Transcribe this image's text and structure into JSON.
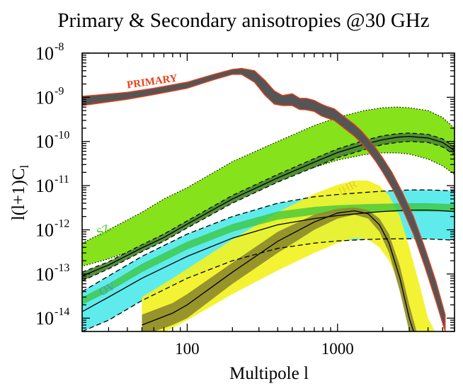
{
  "chart_data": {
    "type": "area",
    "title": "Primary & Secondary anisotropies @30 GHz",
    "xlabel": "Multipole l",
    "ylabel": "l(l+1)C",
    "ylabel_sub": "l",
    "xscale": "log",
    "yscale": "log",
    "xlim": [
      20,
      6000
    ],
    "ylim": [
      5e-15,
      1e-08
    ],
    "x_ticks": [
      {
        "value": 100,
        "label": "100"
      },
      {
        "value": 1000,
        "label": "1000"
      }
    ],
    "y_ticks": [
      {
        "value": 1e-14,
        "base": "10",
        "exp": "-14"
      },
      {
        "value": 1e-13,
        "base": "10",
        "exp": "-13"
      },
      {
        "value": 1e-12,
        "base": "10",
        "exp": "-12"
      },
      {
        "value": 1e-11,
        "base": "10",
        "exp": "-11"
      },
      {
        "value": 1e-10,
        "base": "10",
        "exp": "-10"
      },
      {
        "value": 1e-09,
        "base": "10",
        "exp": "-9"
      },
      {
        "value": 1e-08,
        "base": "10",
        "exp": "-8"
      }
    ],
    "grid": false,
    "colors": {
      "primary_fill": "#555555",
      "primary_edge": "#e8401c",
      "sz_fill": "#86e21a",
      "sz_inner": "#4c8a33",
      "ov_fill": "#4ee9ea",
      "ov_inner": "#3f9a7a",
      "ihr_fill": "#f2f223",
      "ihr_inner": "#8c8a2a",
      "overlap": "#39c43a",
      "lines": "#000000"
    },
    "annotations": [
      {
        "text": "PRIMARY",
        "x": 40,
        "y": 1.6e-09,
        "color": "#e8401c",
        "rotate": -8
      },
      {
        "text": "SZ",
        "x": 26,
        "y": 7e-13,
        "color": "#45c41a",
        "rotate": -28
      },
      {
        "text": "OV",
        "x": 27,
        "y": 3.2e-14,
        "color": "#4a8fe0",
        "rotate": -28
      },
      {
        "text": "IHR",
        "x": 1050,
        "y": 6e-12,
        "color": "#e0d21a",
        "rotate": -28
      }
    ],
    "series": [
      {
        "label": "PRIMARY",
        "x": [
          20,
          40,
          60,
          100,
          150,
          200,
          230,
          280,
          330,
          380,
          430,
          500,
          560,
          620,
          700,
          780,
          850,
          950,
          1050,
          1150,
          1300,
          1450,
          1600,
          1800,
          2000,
          2300,
          2700,
          3200,
          3800,
          4500,
          5200
        ],
        "lower": [
          6.5e-10,
          9e-10,
          1.15e-09,
          1.6e-09,
          2.5e-09,
          3.3e-09,
          3.3e-09,
          2.2e-09,
          1.1e-09,
          7e-10,
          6.5e-10,
          6.5e-10,
          5.3e-10,
          5.2e-10,
          4.8e-10,
          3.8e-10,
          3.4e-10,
          3e-10,
          2.3e-10,
          1.8e-10,
          1.3e-10,
          9e-11,
          6e-11,
          3.5e-11,
          2e-11,
          9e-12,
          3e-12,
          8e-13,
          1.5e-13,
          2.5e-14,
          5e-15
        ],
        "upper": [
          1.05e-09,
          1.3e-09,
          1.6e-09,
          2.2e-09,
          3.3e-09,
          4.3e-09,
          4.5e-09,
          4e-09,
          2.4e-09,
          1.4e-09,
          1.1e-09,
          1.2e-09,
          9.5e-10,
          9.5e-10,
          8.5e-10,
          7e-10,
          6.2e-10,
          5.5e-10,
          4.2e-10,
          3.3e-10,
          2.4e-10,
          1.7e-10,
          1.15e-10,
          7e-11,
          4.2e-11,
          2e-11,
          7e-12,
          2e-12,
          4e-13,
          7e-14,
          1.2e-14
        ]
      },
      {
        "label": "SZ",
        "x": [
          20,
          30,
          50,
          70,
          100,
          200,
          400,
          700,
          1000,
          1500,
          2000,
          2500,
          3000,
          4000,
          5000,
          6000
        ],
        "lower": [
          1.5e-13,
          2.2e-13,
          4e-13,
          8e-13,
          1.5e-12,
          5e-12,
          1.3e-11,
          2.6e-11,
          3.8e-11,
          5e-11,
          5.5e-11,
          5.5e-11,
          5.2e-11,
          4e-11,
          2.8e-11,
          1.8e-11
        ],
        "upper": [
          5e-13,
          1e-12,
          2.5e-12,
          5e-12,
          9e-12,
          3.5e-11,
          1e-10,
          2.3e-10,
          3.5e-10,
          5e-10,
          5.8e-10,
          6e-10,
          5.8e-10,
          5e-10,
          3.5e-10,
          2e-10
        ],
        "inner_lower": [
          7e-14,
          1.3e-13,
          3.2e-13,
          5.5e-13,
          1.1e-12,
          4e-12,
          1.2e-11,
          2.6e-11,
          4.3e-11,
          6.5e-11,
          8.5e-11,
          9.5e-11,
          1e-10,
          9.5e-11,
          7.5e-11,
          5e-11
        ],
        "inner_upper": [
          1.1e-13,
          1.9e-13,
          4.6e-13,
          8e-13,
          1.6e-12,
          6e-12,
          1.8e-11,
          4.1e-11,
          6.8e-11,
          1.05e-10,
          1.35e-10,
          1.5e-10,
          1.55e-10,
          1.45e-10,
          1.15e-10,
          7.5e-11
        ],
        "mid": [
          9e-14,
          1.6e-13,
          3.9e-13,
          6.7e-13,
          1.35e-12,
          5e-12,
          1.5e-11,
          3.4e-11,
          5.6e-11,
          8.6e-11,
          1.1e-10,
          1.25e-10,
          1.3e-10,
          1.2e-10,
          9.5e-11,
          6.2e-11
        ]
      },
      {
        "label": "OV",
        "x": [
          20,
          30,
          50,
          100,
          200,
          400,
          700,
          1000,
          1500,
          2000,
          3000,
          4000,
          5000,
          6000
        ],
        "lower": [
          5e-15,
          9e-15,
          2.5e-14,
          8e-14,
          2e-13,
          3.8e-13,
          5e-13,
          5.6e-13,
          6e-13,
          6.2e-13,
          6.3e-13,
          6.2e-13,
          6e-13,
          5.8e-13
        ],
        "upper": [
          4e-14,
          9e-14,
          2.5e-13,
          8e-13,
          2e-12,
          4e-12,
          5.6e-12,
          6.3e-12,
          7e-12,
          7.5e-12,
          8e-12,
          8e-12,
          7.8e-12,
          7.5e-12
        ],
        "mid": [
          1.4e-14,
          3e-14,
          8e-14,
          2.5e-13,
          6.5e-13,
          1.3e-12,
          1.8e-12,
          2.1e-12,
          2.4e-12,
          2.6e-12,
          2.8e-12,
          2.8e-12,
          2.7e-12,
          2.6e-12
        ],
        "inner_lower": [
          2e-14,
          4e-14,
          1.1e-13,
          3.6e-13,
          9e-13,
          1.7e-12,
          2.2e-12,
          2.4e-12,
          2.5e-12,
          2.55e-12,
          2.6e-12,
          2.6e-12,
          2.6e-12,
          2.5e-12
        ],
        "inner_upper": [
          3e-14,
          6e-14,
          1.7e-13,
          5.4e-13,
          1.35e-12,
          2.6e-12,
          3.3e-12,
          3.6e-12,
          3.8e-12,
          3.9e-12,
          4e-12,
          4e-12,
          3.9e-12,
          3.8e-12
        ]
      },
      {
        "label": "IHR",
        "x": [
          50,
          80,
          100,
          200,
          400,
          700,
          1000,
          1300,
          1600,
          1900,
          2200,
          2600,
          3000,
          3500,
          4000,
          4600
        ],
        "lower": [
          3e-15,
          6e-15,
          9e-15,
          3.5e-14,
          1.2e-13,
          3e-13,
          5e-13,
          6.5e-13,
          6e-13,
          4e-13,
          2e-13,
          6e-14,
          1.5e-14,
          3e-15,
          1e-15,
          1e-15
        ],
        "upper": [
          3e-14,
          8e-14,
          1.3e-13,
          6e-13,
          2.5e-12,
          6.5e-12,
          1.05e-11,
          1.3e-11,
          1.3e-11,
          1e-11,
          6e-12,
          2e-12,
          4e-13,
          6e-14,
          1e-14,
          4e-15
        ],
        "inner_lower": [
          4e-15,
          7e-15,
          1e-14,
          6e-14,
          3e-13,
          1e-12,
          1.8e-12,
          2.2e-12,
          1.8e-12,
          9e-13,
          3e-13,
          4e-14,
          5e-15,
          1e-15,
          1e-15,
          1e-15
        ],
        "inner_upper": [
          1.2e-14,
          2.2e-14,
          3.5e-14,
          1.8e-13,
          9e-13,
          2.2e-12,
          3e-12,
          3.2e-12,
          2.8e-12,
          1.8e-12,
          8e-13,
          1.5e-13,
          2e-14,
          3e-15,
          1e-15,
          1e-15
        ],
        "mid": [
          7e-15,
          1.3e-14,
          2e-14,
          1.1e-13,
          5.5e-13,
          1.5e-12,
          2.4e-12,
          2.7e-12,
          2.3e-12,
          1.3e-12,
          5e-13,
          8e-14,
          1e-14,
          2e-15,
          1e-15,
          1e-15
        ]
      }
    ]
  }
}
